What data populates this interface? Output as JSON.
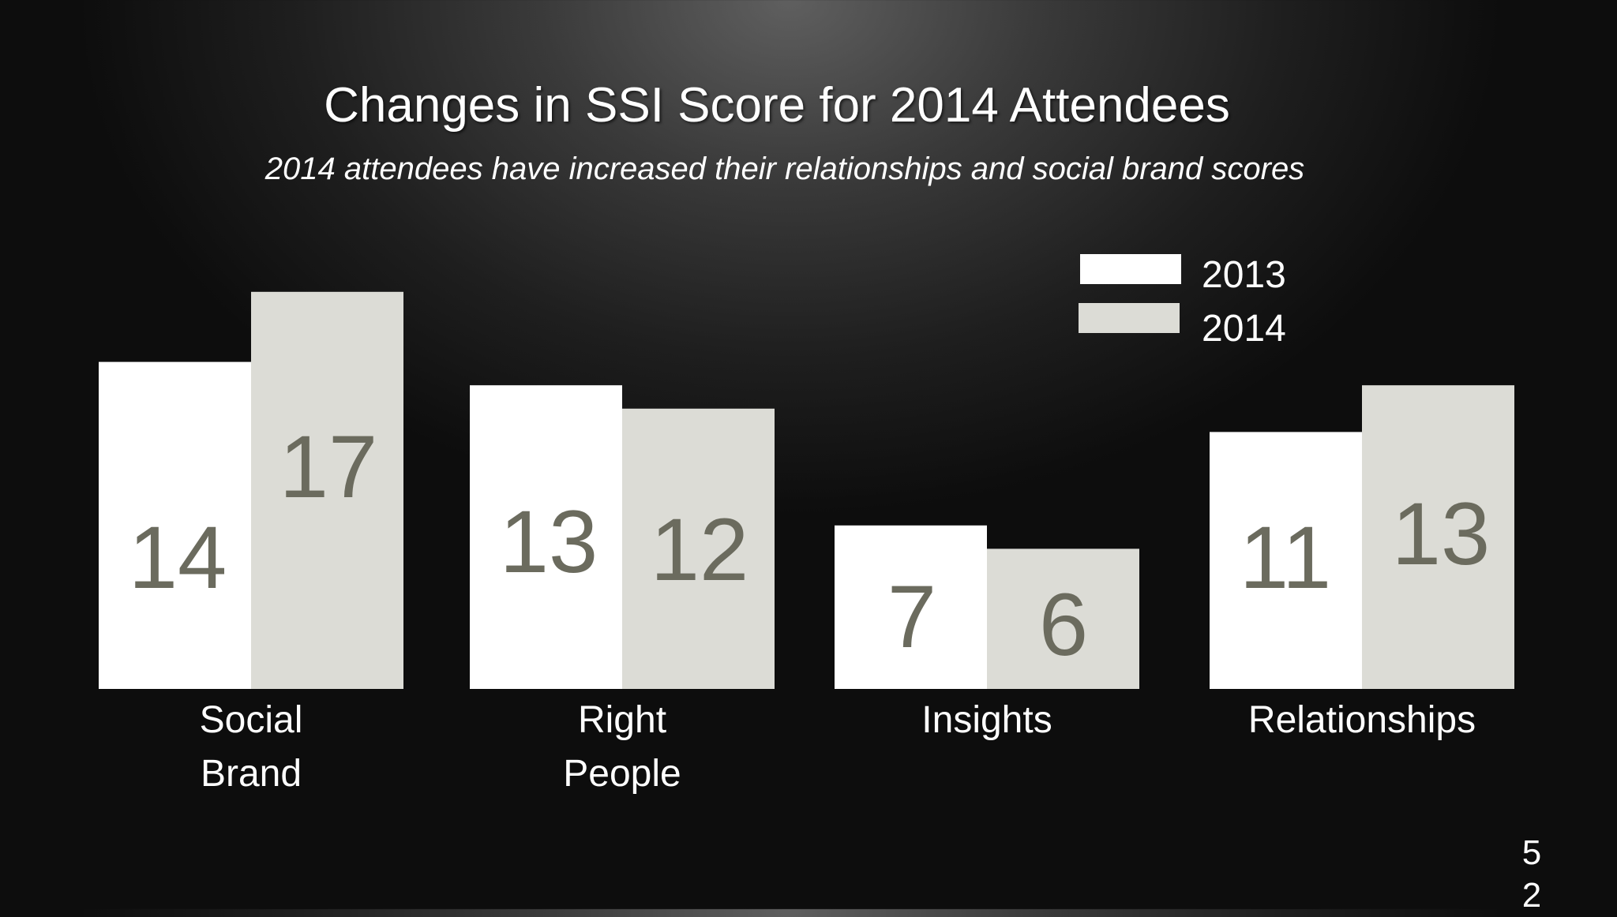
{
  "slide": {
    "title": "Changes in SSI Score for 2014 Attendees",
    "subtitle": "2014 attendees have increased their relationships and social brand scores",
    "page_number": "52"
  },
  "colors": {
    "series_2013": "#ffffff",
    "series_2014": "#dcdcd6",
    "value_label": "#6b6b5e",
    "background": "#1a1a1a"
  },
  "chart_data": {
    "type": "bar",
    "title": "Changes in SSI Score for 2014 Attendees",
    "subtitle": "2014 attendees have increased their relationships and social brand scores",
    "categories": [
      [
        "Social",
        "Brand"
      ],
      [
        "Right",
        "People"
      ],
      [
        "Insights"
      ],
      [
        "Relationships"
      ]
    ],
    "series": [
      {
        "name": "2013",
        "values": [
          14,
          13,
          7,
          11
        ]
      },
      {
        "name": "2014",
        "values": [
          17,
          12,
          6,
          13
        ]
      }
    ],
    "data_labels": true,
    "legend": "top-right",
    "grid": false,
    "xlabel": "",
    "ylabel": ""
  }
}
